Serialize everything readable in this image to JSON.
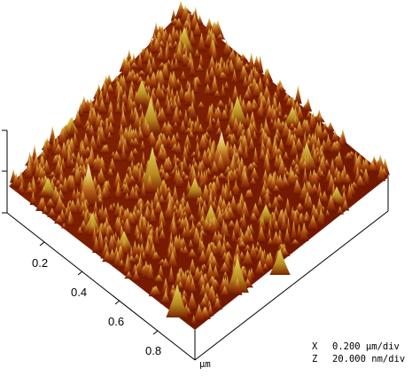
{
  "x_axis": {
    "ticks": [
      "0.2",
      "0.4",
      "0.6",
      "0.8"
    ],
    "unit": "µm"
  },
  "scale_info": {
    "x_label": "X",
    "x_value": "0.200 µm/div",
    "z_label": "Z",
    "z_value": "20.000 nm/div"
  },
  "colors": {
    "surface_low": "#5e0d00",
    "surface_mid": "#a8450e",
    "surface_high": "#d9b44a",
    "surface_peak": "#f2e7d2",
    "axis": "#000000"
  }
}
